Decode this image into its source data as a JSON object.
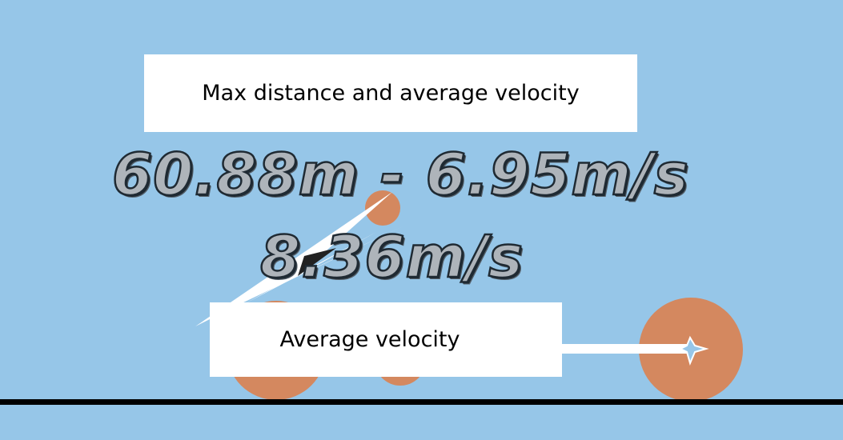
{
  "stats": {
    "max_distance_velocity": "60.88m - 6.95m/s",
    "average_velocity": "8.36m/s"
  },
  "tooltips": {
    "max_distance_label": "Max distance and average velocity",
    "average_velocity_label": "Average velocity"
  },
  "colors": {
    "sky": "#96c6e8",
    "wheel": "#d4885f",
    "ground": "#000000",
    "tooltip_bg": "#ffffff",
    "stat_fill": "#aeb4ba",
    "stat_outline": "#1f2a33"
  },
  "scene": {
    "icons": [
      "car-chassis-icon",
      "wheel-icon",
      "velocity-arrow-icon"
    ]
  }
}
